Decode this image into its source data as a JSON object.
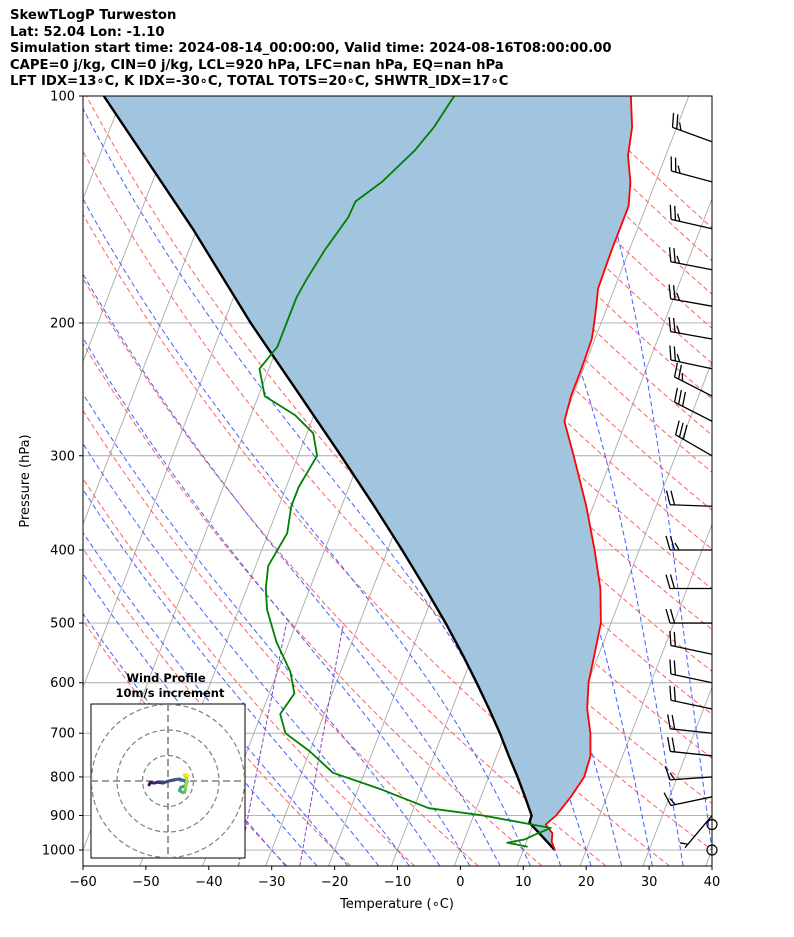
{
  "header": {
    "lines": [
      "SkewTLogP Turweston",
      "Lat: 52.04   Lon: -1.10",
      "Simulation start time: 2024-08-14_00:00:00, Valid time: 2024-08-16T08:00:00.00",
      "CAPE=0 j/kg, CIN=0 j/kg, LCL=920 hPa, LFC=nan hPa, EQ=nan hPa",
      "LFT IDX=13∘C, K IDX=-30∘C, TOTAL TOTS=20∘C, SHWTR_IDX=17∘C"
    ]
  },
  "chart_data": {
    "type": "line",
    "subtype": "skew-t log-p",
    "xlabel": "Temperature (∘C)",
    "ylabel": "Pressure (hPa)",
    "xlim": [
      -60,
      40
    ],
    "ylim": [
      1050,
      100
    ],
    "x_ticks": [
      -60,
      -50,
      -40,
      -30,
      -20,
      -10,
      0,
      10,
      20,
      30,
      40
    ],
    "y_ticks": [
      100,
      200,
      300,
      400,
      500,
      600,
      700,
      800,
      900,
      1000
    ],
    "y_scale": "log",
    "grid": true,
    "colors": {
      "temperature": "#ff0000",
      "dewpoint": "#008000",
      "parcel": "#000000",
      "fill": "#a1c4df",
      "dry_adiabats": "#ff6060",
      "moist_adiabats": "#4060ff",
      "mixing_ratio": "#9040c0",
      "isotherms": "#aaaaaa"
    },
    "temperature": [
      {
        "p": 1000,
        "t": 15.0
      },
      {
        "p": 975,
        "t": 14.0
      },
      {
        "p": 950,
        "t": 13.6
      },
      {
        "p": 925,
        "t": 12.0
      },
      {
        "p": 900,
        "t": 13.1
      },
      {
        "p": 850,
        "t": 14.3
      },
      {
        "p": 800,
        "t": 15.2
      },
      {
        "p": 750,
        "t": 14.9
      },
      {
        "p": 700,
        "t": 13.5
      },
      {
        "p": 650,
        "t": 11.5
      },
      {
        "p": 600,
        "t": 10.1
      },
      {
        "p": 550,
        "t": 9.3
      },
      {
        "p": 500,
        "t": 8.4
      },
      {
        "p": 450,
        "t": 6.2
      },
      {
        "p": 400,
        "t": 2.9
      },
      {
        "p": 350,
        "t": -1.1
      },
      {
        "p": 300,
        "t": -6.2
      },
      {
        "p": 270,
        "t": -9.8
      },
      {
        "p": 250,
        "t": -10.3
      },
      {
        "p": 230,
        "t": -10.3
      },
      {
        "p": 210,
        "t": -10.5
      },
      {
        "p": 200,
        "t": -11.1
      },
      {
        "p": 190,
        "t": -11.8
      },
      {
        "p": 180,
        "t": -12.6
      },
      {
        "p": 160,
        "t": -12.8
      },
      {
        "p": 140,
        "t": -12.8
      },
      {
        "p": 130,
        "t": -14.0
      },
      {
        "p": 120,
        "t": -16.0
      },
      {
        "p": 110,
        "t": -17.1
      },
      {
        "p": 100,
        "t": -19.2
      }
    ],
    "dewpoint": [
      {
        "p": 990,
        "t": 10.5
      },
      {
        "p": 978,
        "t": 7.0
      },
      {
        "p": 968,
        "t": 9.6
      },
      {
        "p": 955,
        "t": 10.8
      },
      {
        "p": 935,
        "t": 13.0
      },
      {
        "p": 900,
        "t": 1.5
      },
      {
        "p": 880,
        "t": -7.6
      },
      {
        "p": 830,
        "t": -16.5
      },
      {
        "p": 790,
        "t": -25.0
      },
      {
        "p": 740,
        "t": -30.0
      },
      {
        "p": 700,
        "t": -35.0
      },
      {
        "p": 660,
        "t": -37.0
      },
      {
        "p": 620,
        "t": -36.0
      },
      {
        "p": 580,
        "t": -38.0
      },
      {
        "p": 530,
        "t": -42.0
      },
      {
        "p": 480,
        "t": -45.5
      },
      {
        "p": 450,
        "t": -47.0
      },
      {
        "p": 420,
        "t": -48.0
      },
      {
        "p": 380,
        "t": -47.0
      },
      {
        "p": 350,
        "t": -48.0
      },
      {
        "p": 330,
        "t": -48.0
      },
      {
        "p": 300,
        "t": -47.0
      },
      {
        "p": 280,
        "t": -49.0
      },
      {
        "p": 265,
        "t": -53.0
      },
      {
        "p": 250,
        "t": -59.0
      },
      {
        "p": 230,
        "t": -61.5
      },
      {
        "p": 215,
        "t": -60.0
      },
      {
        "p": 200,
        "t": -60.0
      },
      {
        "p": 185,
        "t": -60.0
      },
      {
        "p": 175,
        "t": -59.5
      },
      {
        "p": 160,
        "t": -58.4
      },
      {
        "p": 145,
        "t": -56.7
      },
      {
        "p": 138,
        "t": -56.5
      },
      {
        "p": 130,
        "t": -53.5
      },
      {
        "p": 118,
        "t": -50.2
      },
      {
        "p": 110,
        "t": -48.6
      },
      {
        "p": 100,
        "t": -47.3
      }
    ],
    "parcel": [
      {
        "p": 1000,
        "t": 15.0
      },
      {
        "p": 950,
        "t": 11.5
      },
      {
        "p": 920,
        "t": 9.3
      },
      {
        "p": 900,
        "t": 9.2
      },
      {
        "p": 850,
        "t": 7.0
      },
      {
        "p": 800,
        "t": 4.6
      },
      {
        "p": 750,
        "t": 1.9
      },
      {
        "p": 700,
        "t": -0.9
      },
      {
        "p": 650,
        "t": -4.1
      },
      {
        "p": 600,
        "t": -7.7
      },
      {
        "p": 550,
        "t": -11.7
      },
      {
        "p": 500,
        "t": -16.3
      },
      {
        "p": 450,
        "t": -21.6
      },
      {
        "p": 400,
        "t": -27.7
      },
      {
        "p": 350,
        "t": -34.8
      },
      {
        "p": 300,
        "t": -43.2
      },
      {
        "p": 250,
        "t": -53.3
      },
      {
        "p": 200,
        "t": -65.7
      },
      {
        "p": 150,
        "t": -80.7
      },
      {
        "p": 100,
        "t": -103.0
      }
    ],
    "winds": [
      {
        "p": 1000,
        "speed_kt": 0,
        "dir_deg": 0
      },
      {
        "p": 925,
        "speed_kt": 0,
        "dir_deg": 0
      },
      {
        "p": 900,
        "speed_kt": 5,
        "dir_deg": 220
      },
      {
        "p": 850,
        "speed_kt": 15,
        "dir_deg": 258
      },
      {
        "p": 800,
        "speed_kt": 15,
        "dir_deg": 266
      },
      {
        "p": 750,
        "speed_kt": 20,
        "dir_deg": 276
      },
      {
        "p": 700,
        "speed_kt": 20,
        "dir_deg": 276
      },
      {
        "p": 650,
        "speed_kt": 20,
        "dir_deg": 282
      },
      {
        "p": 600,
        "speed_kt": 20,
        "dir_deg": 282
      },
      {
        "p": 550,
        "speed_kt": 20,
        "dir_deg": 282
      },
      {
        "p": 500,
        "speed_kt": 20,
        "dir_deg": 270
      },
      {
        "p": 450,
        "speed_kt": 20,
        "dir_deg": 270
      },
      {
        "p": 400,
        "speed_kt": 25,
        "dir_deg": 270
      },
      {
        "p": 350,
        "speed_kt": 20,
        "dir_deg": 272
      },
      {
        "p": 300,
        "speed_kt": 30,
        "dir_deg": 300
      },
      {
        "p": 270,
        "speed_kt": 30,
        "dir_deg": 297
      },
      {
        "p": 250,
        "speed_kt": 25,
        "dir_deg": 297
      },
      {
        "p": 230,
        "speed_kt": 25,
        "dir_deg": 282
      },
      {
        "p": 210,
        "speed_kt": 25,
        "dir_deg": 280
      },
      {
        "p": 190,
        "speed_kt": 25,
        "dir_deg": 280
      },
      {
        "p": 170,
        "speed_kt": 25,
        "dir_deg": 281
      },
      {
        "p": 150,
        "speed_kt": 25,
        "dir_deg": 283
      },
      {
        "p": 130,
        "speed_kt": 25,
        "dir_deg": 285
      },
      {
        "p": 115,
        "speed_kt": 25,
        "dir_deg": 290
      }
    ],
    "hodograph": {
      "title_line1": "Wind Profile",
      "title_line2": "10m/s increment",
      "ring_step_ms": 10,
      "rings": 3,
      "u": [
        -7.4,
        -7.0,
        -5.5,
        -4.0,
        -2.0,
        0.0,
        2.5,
        4.5,
        5.5,
        6.5,
        7.0,
        7.5,
        7.0,
        5.0,
        4.5,
        5.8,
        6.5,
        6.8,
        6.8,
        7.2,
        7.4,
        6.4,
        7.3,
        7.8
      ],
      "v": [
        -1.5,
        -0.6,
        -0.8,
        -0.5,
        -0.8,
        -0.1,
        0.5,
        0.8,
        0.4,
        0.2,
        -0.5,
        -0.2,
        -1.8,
        -2.5,
        -3.8,
        -4.5,
        -4.4,
        -3.5,
        -2.5,
        -1.5,
        1.0,
        2.3,
        2.5,
        2.1
      ]
    }
  }
}
